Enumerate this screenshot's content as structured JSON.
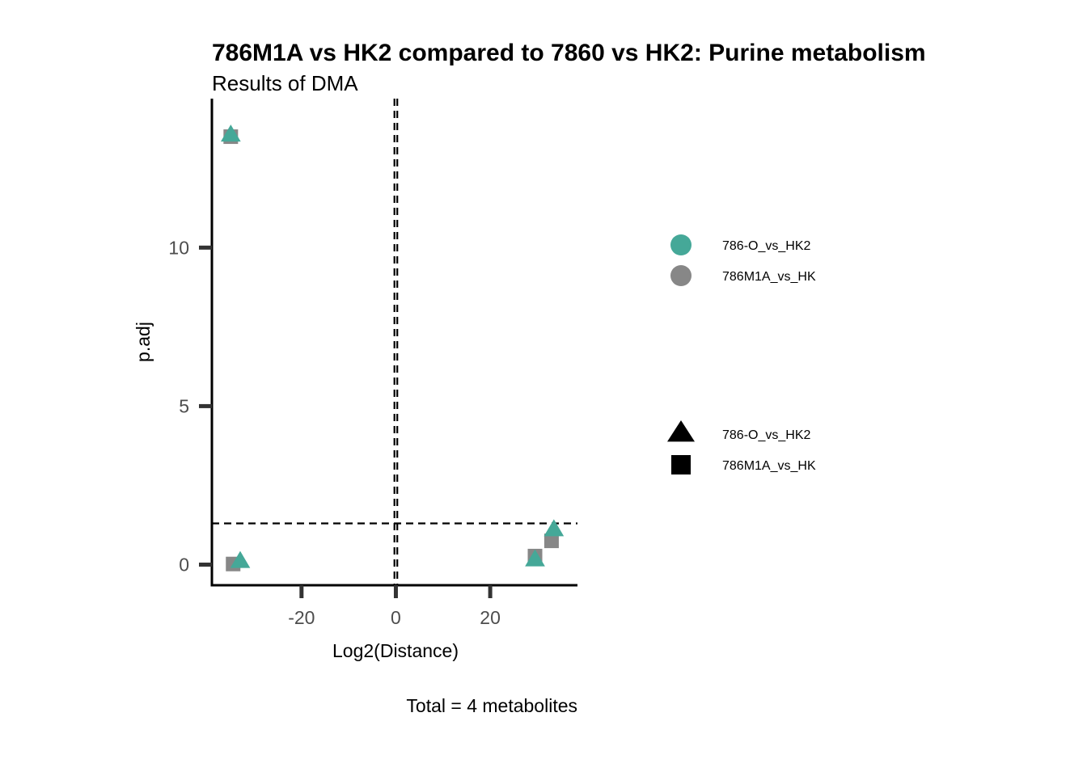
{
  "chart_data": {
    "type": "scatter",
    "title": "786M1A vs HK2 compared to 7860 vs HK2: Purine metabolism",
    "subtitle": "Results of DMA",
    "xlabel": "Log2(Distance)",
    "ylabel": "p.adj",
    "caption": "Total = 4 metabolites",
    "xlim": [
      -39,
      38.5
    ],
    "ylim": [
      -0.65,
      14.7
    ],
    "xticks": [
      -20,
      0,
      20
    ],
    "xtick_labels": [
      "-20",
      "0",
      "20"
    ],
    "yticks": [
      0,
      5,
      10
    ],
    "ytick_labels": [
      "0",
      "5",
      "10"
    ],
    "grid": false,
    "reference_lines": {
      "vertical": [
        -0.3,
        0.3
      ],
      "horizontal": [
        1.3
      ]
    },
    "series": [
      {
        "name": "786-O_vs_HK2",
        "color": "#45a898",
        "marker": "triangle",
        "points": [
          {
            "x": -35,
            "y": 13.55
          },
          {
            "x": -33,
            "y": 0.1
          },
          {
            "x": 29.5,
            "y": 0.15
          },
          {
            "x": 33.5,
            "y": 1.1
          }
        ]
      },
      {
        "name": "786M1A_vs_HK",
        "color": "#878787",
        "marker": "square",
        "points": [
          {
            "x": -35,
            "y": 13.5
          },
          {
            "x": -34.5,
            "y": 0.02
          },
          {
            "x": 29.5,
            "y": 0.27
          },
          {
            "x": 33,
            "y": 0.75
          }
        ]
      }
    ],
    "legend": {
      "position": "right",
      "color_legend": [
        {
          "label": "786-O_vs_HK2",
          "color": "#45a898"
        },
        {
          "label": "786M1A_vs_HK",
          "color": "#878787"
        }
      ],
      "shape_legend": [
        {
          "label": "786-O_vs_HK2",
          "shape": "triangle"
        },
        {
          "label": "786M1A_vs_HK",
          "shape": "square"
        }
      ]
    }
  }
}
